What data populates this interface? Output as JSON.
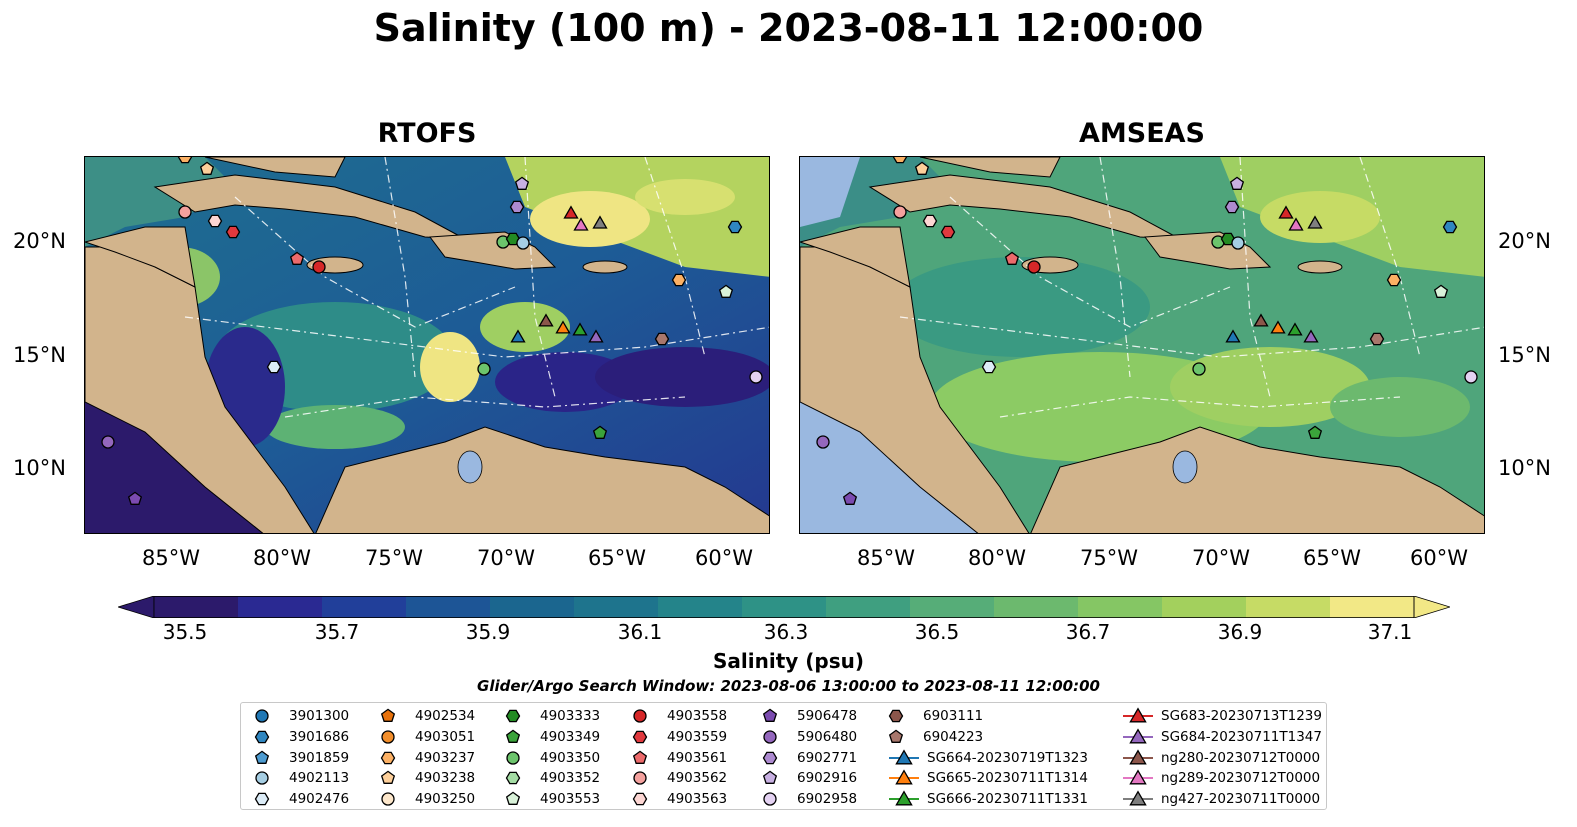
{
  "title": "Salinity (100 m) - 2023-08-11 12:00:00",
  "panels": [
    {
      "title": "RTOFS"
    },
    {
      "title": "AMSEAS"
    }
  ],
  "lon_ticks": [
    "85°W",
    "80°W",
    "75°W",
    "70°W",
    "65°W",
    "60°W"
  ],
  "lat_ticks": [
    "20°N",
    "15°N",
    "10°N"
  ],
  "colorbar": {
    "ticks": [
      "35.5",
      "35.7",
      "35.9",
      "36.1",
      "36.3",
      "36.5",
      "36.7",
      "36.9",
      "37.1"
    ],
    "label": "Salinity (psu)",
    "colors": [
      "#2c1a6b",
      "#2a2992",
      "#213f9a",
      "#1d5596",
      "#1b668f",
      "#1e748d",
      "#24848a",
      "#2e9286",
      "#3f9f80",
      "#56ad78",
      "#6cb96e",
      "#85c664",
      "#a3d05d",
      "#c6db65",
      "#f2e886"
    ]
  },
  "search_window": "Glider/Argo Search Window: 2023-08-06 13:00:00 to 2023-08-11 12:00:00",
  "legend": {
    "columns": [
      [
        {
          "label": "3901300",
          "shape": "circle",
          "color": "#1f77b4"
        },
        {
          "label": "3901686",
          "shape": "hexagon",
          "color": "#2f86c0"
        },
        {
          "label": "3901859",
          "shape": "pentagon",
          "color": "#4d9bd0"
        },
        {
          "label": "4902113",
          "shape": "circle",
          "color": "#a6cee3"
        },
        {
          "label": "4902476",
          "shape": "hexagon",
          "color": "#dcecf7"
        }
      ],
      [
        {
          "label": "4902534",
          "shape": "pentagon",
          "color": "#e8720c"
        },
        {
          "label": "4903051",
          "shape": "circle",
          "color": "#f28e2b"
        },
        {
          "label": "4903237",
          "shape": "hexagon",
          "color": "#fbb064"
        },
        {
          "label": "4903238",
          "shape": "pentagon",
          "color": "#fdcf9a"
        },
        {
          "label": "4903250",
          "shape": "circle",
          "color": "#fde7cb"
        }
      ],
      [
        {
          "label": "4903333",
          "shape": "hexagon",
          "color": "#238b23"
        },
        {
          "label": "4903349",
          "shape": "pentagon",
          "color": "#3ba33b"
        },
        {
          "label": "4903350",
          "shape": "circle",
          "color": "#6cc46c"
        },
        {
          "label": "4903352",
          "shape": "hexagon",
          "color": "#a4dca4"
        },
        {
          "label": "4903553",
          "shape": "pentagon",
          "color": "#d9f2d9"
        }
      ],
      [
        {
          "label": "4903558",
          "shape": "circle",
          "color": "#d62728"
        },
        {
          "label": "4903559",
          "shape": "hexagon",
          "color": "#e0393e"
        },
        {
          "label": "4903561",
          "shape": "pentagon",
          "color": "#ec6a6b"
        },
        {
          "label": "4903562",
          "shape": "circle",
          "color": "#f4a19e"
        },
        {
          "label": "4903563",
          "shape": "hexagon",
          "color": "#fcd6d3"
        }
      ],
      [
        {
          "label": "5906478",
          "shape": "pentagon",
          "color": "#7b4bb0"
        },
        {
          "label": "5906480",
          "shape": "circle",
          "color": "#9467bd"
        },
        {
          "label": "6902771",
          "shape": "hexagon",
          "color": "#ad8ad0"
        },
        {
          "label": "6902916",
          "shape": "pentagon",
          "color": "#c8b0e2"
        },
        {
          "label": "6902958",
          "shape": "circle",
          "color": "#e4d2f2"
        }
      ],
      [
        {
          "label": "6903111",
          "shape": "hexagon",
          "color": "#8c564b"
        },
        {
          "label": "6904223",
          "shape": "pentagon",
          "color": "#a8776c"
        },
        {
          "label": "SG664-20230719T1323",
          "shape": "triangle-line",
          "color": "#1f77b4"
        },
        {
          "label": "SG665-20230711T1314",
          "shape": "triangle-line",
          "color": "#ff7f0e"
        },
        {
          "label": "SG666-20230711T1331",
          "shape": "triangle-line",
          "color": "#2ca02c"
        }
      ],
      [
        {
          "label": "SG683-20230713T1239",
          "shape": "triangle-line",
          "color": "#d62728"
        },
        {
          "label": "SG684-20230711T1347",
          "shape": "triangle-line",
          "color": "#9467bd"
        },
        {
          "label": "ng280-20230712T0000",
          "shape": "triangle-line",
          "color": "#8c564b"
        },
        {
          "label": "ng289-20230712T0000",
          "shape": "triangle-line",
          "color": "#e377c2"
        },
        {
          "label": "ng427-20230711T0000",
          "shape": "triangle-line",
          "color": "#7f7f7f"
        }
      ]
    ]
  }
}
